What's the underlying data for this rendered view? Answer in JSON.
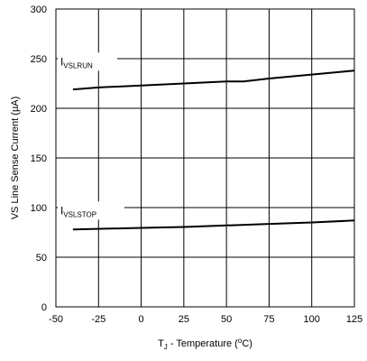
{
  "chart_data": {
    "type": "line",
    "title": "",
    "xlabel": {
      "main": "T",
      "sub": "J",
      "rest": " - Temperature (",
      "sup": "o",
      "end": "C)"
    },
    "ylabel": "VS Line Sense Current (µA)",
    "xlim": [
      -50,
      125
    ],
    "ylim": [
      0,
      300
    ],
    "x_ticks": [
      -50,
      -25,
      0,
      25,
      50,
      75,
      100,
      125
    ],
    "y_ticks": [
      0,
      50,
      100,
      150,
      200,
      250,
      300
    ],
    "grid": true,
    "series": [
      {
        "name": {
          "main": "I",
          "sub": "VSLRUN"
        },
        "color": "#000000",
        "x": [
          -40,
          -25,
          0,
          25,
          50,
          60,
          75,
          100,
          125
        ],
        "y": [
          219,
          221,
          223,
          225,
          227,
          227,
          230,
          234,
          238
        ]
      },
      {
        "name": {
          "main": "I",
          "sub": "VSLSTOP"
        },
        "color": "#000000",
        "x": [
          -40,
          0,
          25,
          50,
          75,
          100,
          125
        ],
        "y": [
          78,
          79.5,
          80.5,
          82,
          83.5,
          85,
          87
        ]
      }
    ]
  }
}
